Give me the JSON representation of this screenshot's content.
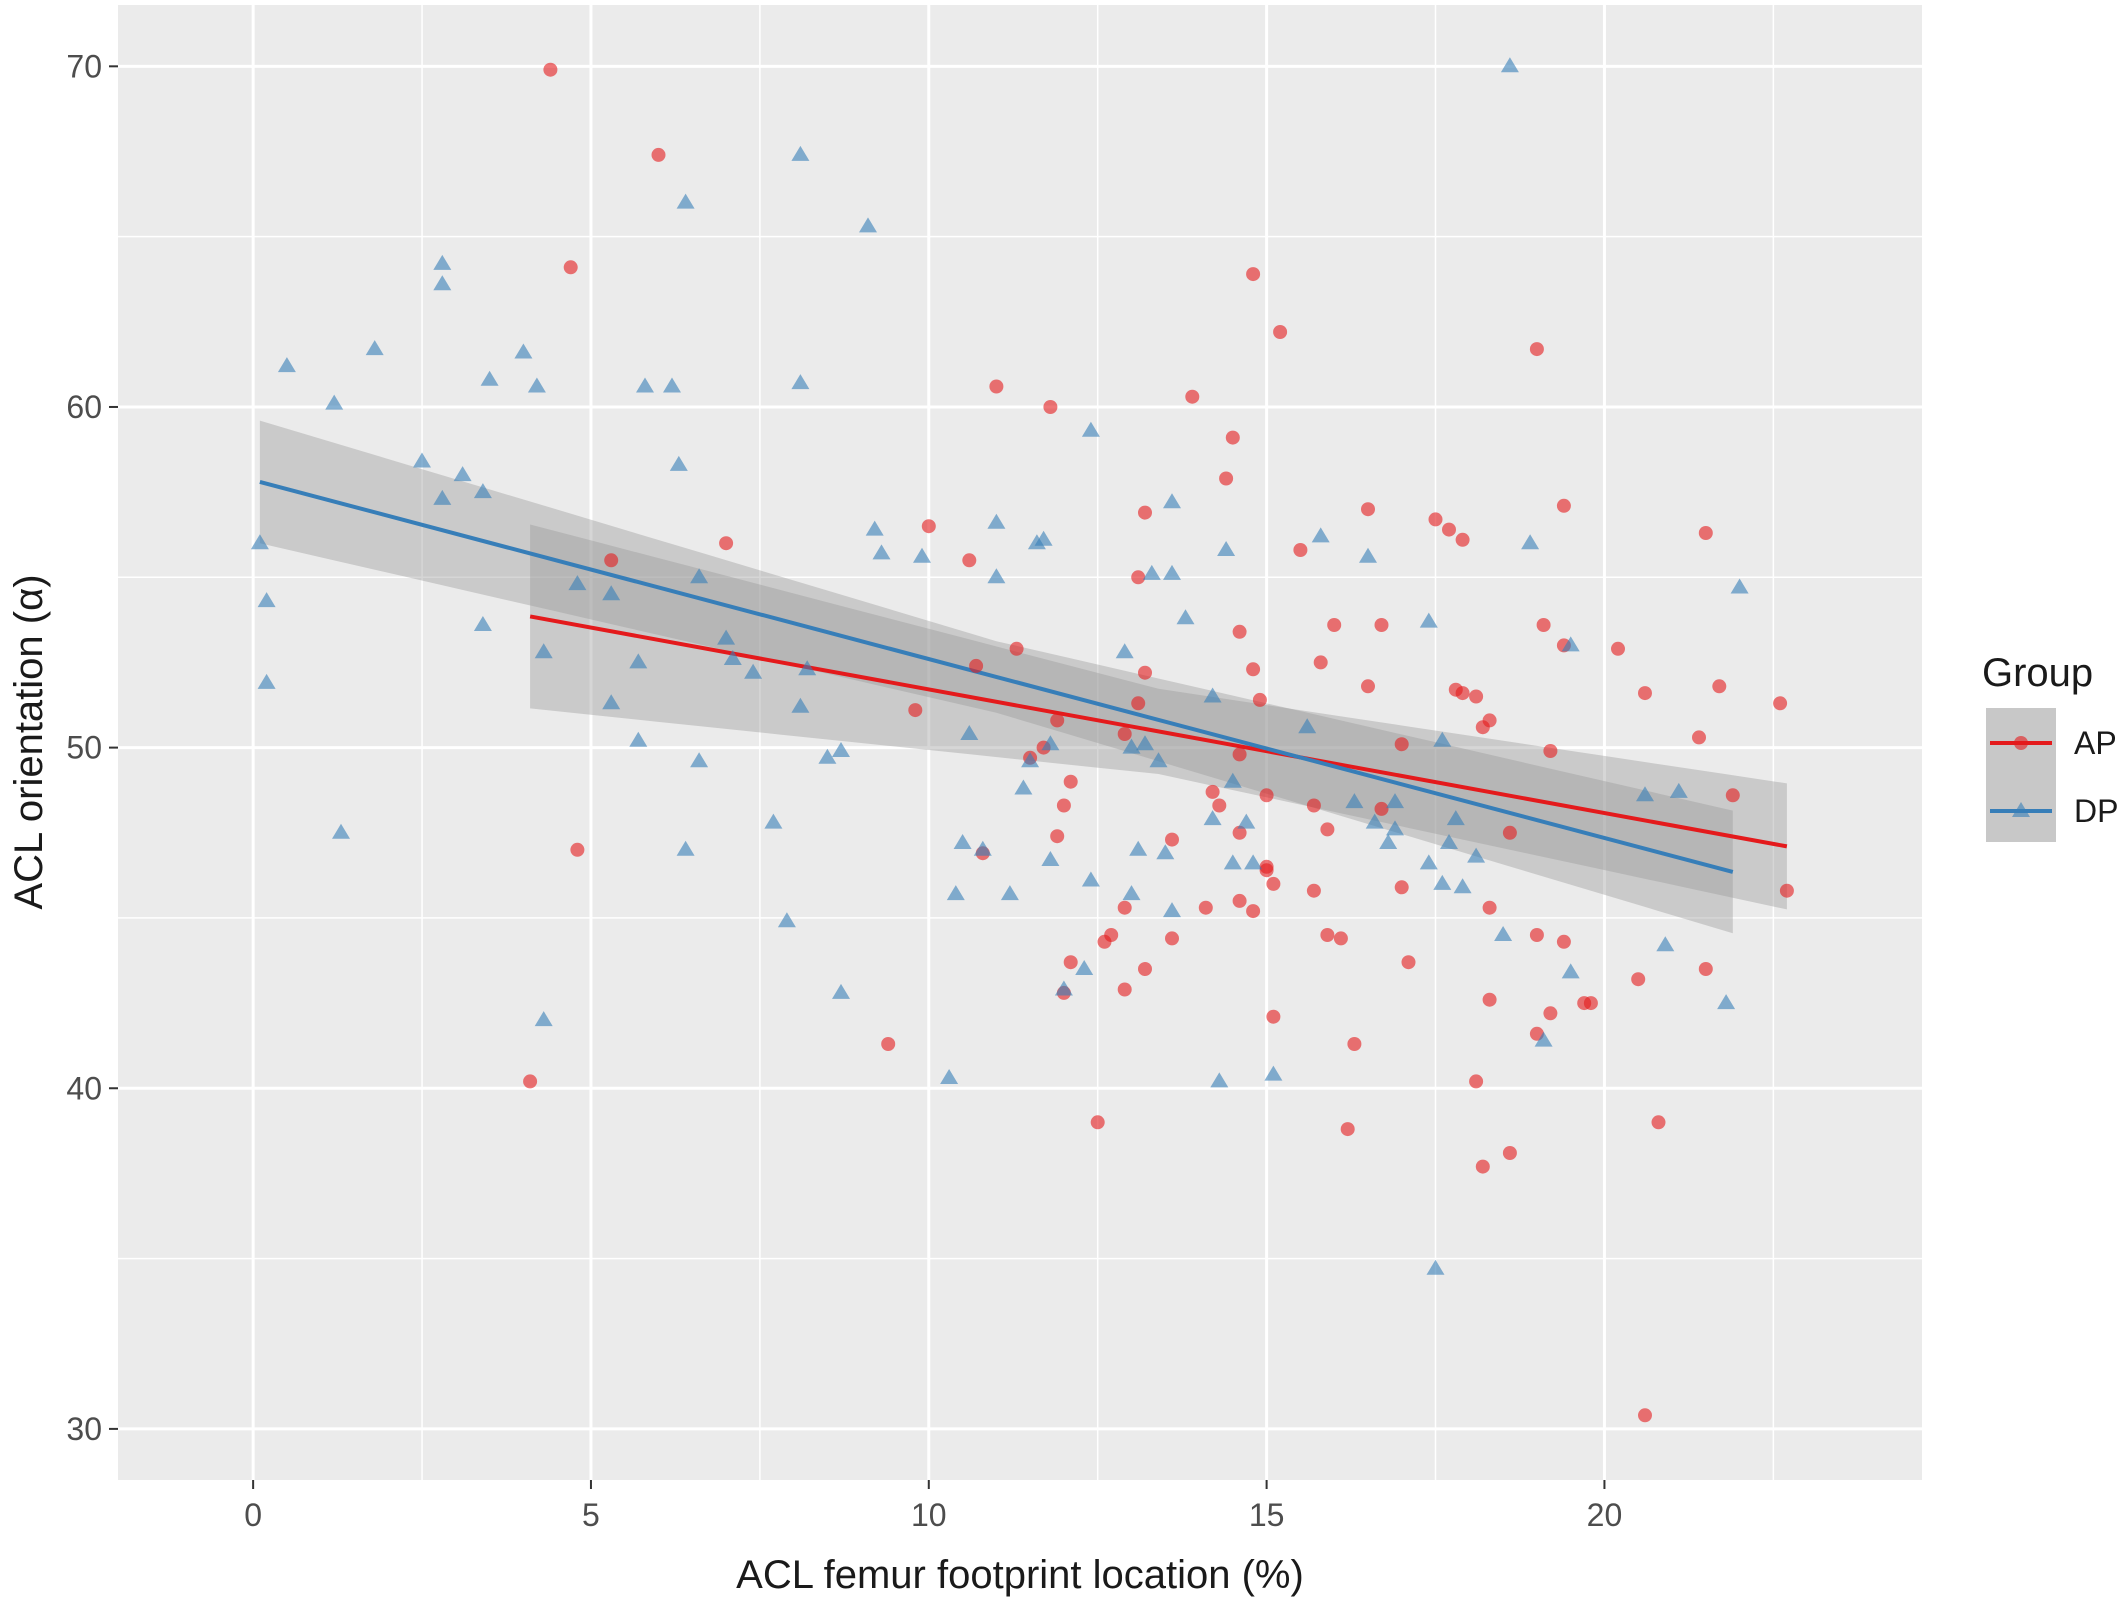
{
  "chart_data": {
    "type": "scatter",
    "title": "",
    "xlabel": "ACL femur footprint location (%)",
    "ylabel": "ACL orientation (α)",
    "xlim": [
      -2,
      24.7
    ],
    "ylim": [
      28.5,
      71.8
    ],
    "x_ticks": [
      0,
      5,
      10,
      15,
      20
    ],
    "y_ticks": [
      30,
      40,
      50,
      60,
      70
    ],
    "grid": true,
    "legend": {
      "title": "Group",
      "position": "right"
    },
    "series": [
      {
        "name": "AP",
        "marker": "circle",
        "color": "#e41a1c",
        "points": [
          [
            4.4,
            69.9
          ],
          [
            6,
            67.4
          ],
          [
            4.7,
            64.1
          ],
          [
            14.8,
            63.9
          ],
          [
            15.2,
            62.2
          ],
          [
            19,
            61.7
          ],
          [
            11,
            60.6
          ],
          [
            13.9,
            60.3
          ],
          [
            11.8,
            60
          ],
          [
            14.5,
            59.1
          ],
          [
            14.4,
            57.9
          ],
          [
            16.5,
            57
          ],
          [
            19.4,
            57.1
          ],
          [
            13.2,
            56.9
          ],
          [
            17.5,
            56.7
          ],
          [
            17.7,
            56.4
          ],
          [
            17.9,
            56.1
          ],
          [
            21.5,
            56.3
          ],
          [
            7,
            56
          ],
          [
            15.5,
            55.8
          ],
          [
            10.6,
            55.5
          ],
          [
            5.3,
            55.5
          ],
          [
            13.1,
            55
          ],
          [
            10,
            56.5
          ],
          [
            19.1,
            53.6
          ],
          [
            19.4,
            53
          ],
          [
            16,
            53.6
          ],
          [
            16.7,
            53.6
          ],
          [
            20.2,
            52.9
          ],
          [
            14.6,
            53.4
          ],
          [
            11.3,
            52.9
          ],
          [
            15.8,
            52.5
          ],
          [
            13.2,
            52.2
          ],
          [
            14.8,
            52.3
          ],
          [
            10.7,
            52.4
          ],
          [
            18.1,
            51.5
          ],
          [
            17.8,
            51.7
          ],
          [
            17.9,
            51.6
          ],
          [
            20.6,
            51.6
          ],
          [
            21.7,
            51.8
          ],
          [
            22.6,
            51.3
          ],
          [
            16.5,
            51.8
          ],
          [
            14.9,
            51.4
          ],
          [
            13.1,
            51.3
          ],
          [
            9.8,
            51.1
          ],
          [
            18.3,
            50.8
          ],
          [
            18.2,
            50.6
          ],
          [
            12.9,
            50.4
          ],
          [
            21.4,
            50.3
          ],
          [
            17,
            50.1
          ],
          [
            19.2,
            49.9
          ],
          [
            14.6,
            49.8
          ],
          [
            11.5,
            49.7
          ],
          [
            11.7,
            50
          ],
          [
            15,
            48.6
          ],
          [
            21.9,
            48.6
          ],
          [
            14.2,
            48.7
          ],
          [
            12.1,
            49
          ],
          [
            12,
            48.3
          ],
          [
            14.3,
            48.3
          ],
          [
            15.7,
            48.3
          ],
          [
            16.7,
            48.2
          ],
          [
            11.9,
            47.4
          ],
          [
            15.9,
            47.6
          ],
          [
            14.6,
            47.5
          ],
          [
            18.6,
            47.5
          ],
          [
            13.6,
            47.3
          ],
          [
            10.8,
            46.9
          ],
          [
            15,
            46.5
          ],
          [
            15,
            46.4
          ],
          [
            22.7,
            45.8
          ],
          [
            15.1,
            46
          ],
          [
            15.7,
            45.8
          ],
          [
            17,
            45.9
          ],
          [
            12.9,
            45.3
          ],
          [
            14.1,
            45.3
          ],
          [
            14.6,
            45.5
          ],
          [
            14.8,
            45.2
          ],
          [
            18.3,
            45.3
          ],
          [
            16.1,
            44.4
          ],
          [
            15.9,
            44.5
          ],
          [
            12.6,
            44.3
          ],
          [
            12.7,
            44.5
          ],
          [
            13.6,
            44.4
          ],
          [
            19,
            44.5
          ],
          [
            19.4,
            44.3
          ],
          [
            12.1,
            43.7
          ],
          [
            13.2,
            43.5
          ],
          [
            17.1,
            43.7
          ],
          [
            21.5,
            43.5
          ],
          [
            20.5,
            43.2
          ],
          [
            12.9,
            42.9
          ],
          [
            12,
            42.8
          ],
          [
            18.3,
            42.6
          ],
          [
            19.2,
            42.2
          ],
          [
            19.7,
            42.5
          ],
          [
            19.8,
            42.5
          ],
          [
            15.1,
            42.1
          ],
          [
            19,
            41.6
          ],
          [
            9.4,
            41.3
          ],
          [
            16.3,
            41.3
          ],
          [
            4.1,
            40.2
          ],
          [
            18.1,
            40.2
          ],
          [
            12.5,
            39
          ],
          [
            16.2,
            38.8
          ],
          [
            20.8,
            39
          ],
          [
            18.6,
            38.1
          ],
          [
            18.2,
            37.7
          ],
          [
            20.6,
            30.4
          ],
          [
            4.8,
            47
          ],
          [
            11.9,
            50.8
          ]
        ]
      },
      {
        "name": "DP",
        "marker": "triangle",
        "color": "#377eb8",
        "points": [
          [
            18.6,
            70
          ],
          [
            8.1,
            67.4
          ],
          [
            6.4,
            66
          ],
          [
            9.1,
            65.3
          ],
          [
            2.8,
            64.2
          ],
          [
            2.8,
            63.6
          ],
          [
            1.8,
            61.7
          ],
          [
            0.5,
            61.2
          ],
          [
            3.5,
            60.8
          ],
          [
            4,
            61.6
          ],
          [
            4.2,
            60.6
          ],
          [
            5.8,
            60.6
          ],
          [
            6.2,
            60.6
          ],
          [
            8.1,
            60.7
          ],
          [
            1.2,
            60.1
          ],
          [
            12.4,
            59.3
          ],
          [
            2.5,
            58.4
          ],
          [
            6.3,
            58.3
          ],
          [
            3.1,
            58
          ],
          [
            2.8,
            57.3
          ],
          [
            3.4,
            57.5
          ],
          [
            13.6,
            57.2
          ],
          [
            9.2,
            56.4
          ],
          [
            11,
            56.6
          ],
          [
            11.6,
            56
          ],
          [
            11.7,
            56.1
          ],
          [
            15.8,
            56.2
          ],
          [
            18.9,
            56
          ],
          [
            0.1,
            56
          ],
          [
            9.3,
            55.7
          ],
          [
            9.9,
            55.6
          ],
          [
            14.4,
            55.8
          ],
          [
            16.5,
            55.6
          ],
          [
            13.3,
            55.1
          ],
          [
            13.6,
            55.1
          ],
          [
            5.3,
            54.5
          ],
          [
            4.8,
            54.8
          ],
          [
            6.6,
            55
          ],
          [
            11,
            55
          ],
          [
            22,
            54.7
          ],
          [
            0.2,
            54.3
          ],
          [
            13.8,
            53.8
          ],
          [
            17.4,
            53.7
          ],
          [
            3.4,
            53.6
          ],
          [
            19.5,
            53
          ],
          [
            7,
            53.2
          ],
          [
            4.3,
            52.8
          ],
          [
            12.9,
            52.8
          ],
          [
            5.7,
            52.5
          ],
          [
            7.1,
            52.6
          ],
          [
            7.4,
            52.2
          ],
          [
            8.2,
            52.3
          ],
          [
            8.1,
            51.2
          ],
          [
            14.2,
            51.5
          ],
          [
            0.2,
            51.9
          ],
          [
            5.3,
            51.3
          ],
          [
            15.6,
            50.6
          ],
          [
            10.6,
            50.4
          ],
          [
            5.7,
            50.2
          ],
          [
            17.6,
            50.2
          ],
          [
            13,
            50
          ],
          [
            13.2,
            50.1
          ],
          [
            11.8,
            50.1
          ],
          [
            8.7,
            49.9
          ],
          [
            8.5,
            49.7
          ],
          [
            11.5,
            49.6
          ],
          [
            13.4,
            49.6
          ],
          [
            6.6,
            49.6
          ],
          [
            20.6,
            48.6
          ],
          [
            21.1,
            48.7
          ],
          [
            14.5,
            49
          ],
          [
            16.9,
            48.4
          ],
          [
            16.3,
            48.4
          ],
          [
            14.2,
            47.9
          ],
          [
            14.7,
            47.8
          ],
          [
            16.6,
            47.8
          ],
          [
            17.8,
            47.9
          ],
          [
            11.4,
            48.8
          ],
          [
            16.8,
            47.2
          ],
          [
            16.9,
            47.6
          ],
          [
            17.7,
            47.2
          ],
          [
            18.1,
            46.8
          ],
          [
            7.7,
            47.8
          ],
          [
            11.8,
            46.7
          ],
          [
            10.5,
            47.2
          ],
          [
            10.8,
            47
          ],
          [
            14.5,
            46.6
          ],
          [
            13.1,
            47
          ],
          [
            13.5,
            46.9
          ],
          [
            6.4,
            47
          ],
          [
            12.4,
            46.1
          ],
          [
            13,
            45.7
          ],
          [
            14.8,
            46.6
          ],
          [
            17.4,
            46.6
          ],
          [
            17.6,
            46
          ],
          [
            17.9,
            45.9
          ],
          [
            10.4,
            45.7
          ],
          [
            11.2,
            45.7
          ],
          [
            13.6,
            45.2
          ],
          [
            18.5,
            44.5
          ],
          [
            7.9,
            44.9
          ],
          [
            20.9,
            44.2
          ],
          [
            19.5,
            43.4
          ],
          [
            12.3,
            43.5
          ],
          [
            12,
            42.9
          ],
          [
            21.8,
            42.5
          ],
          [
            4.3,
            42
          ],
          [
            8.7,
            42.8
          ],
          [
            1.3,
            47.5
          ],
          [
            19.1,
            41.4
          ],
          [
            15.1,
            40.4
          ],
          [
            10.3,
            40.3
          ],
          [
            14.3,
            40.2
          ],
          [
            17.5,
            34.7
          ]
        ]
      }
    ],
    "fits": [
      {
        "series": "AP",
        "x": [
          4.1,
          22.7
        ],
        "y": [
          53.85,
          47.1
        ],
        "ci": [
          2.7,
          1.25,
          1.85
        ]
      },
      {
        "series": "DP",
        "x": [
          0.1,
          21.9
        ],
        "y": [
          57.8,
          46.35
        ],
        "ci": [
          1.8,
          1.05,
          1.8
        ]
      }
    ]
  }
}
